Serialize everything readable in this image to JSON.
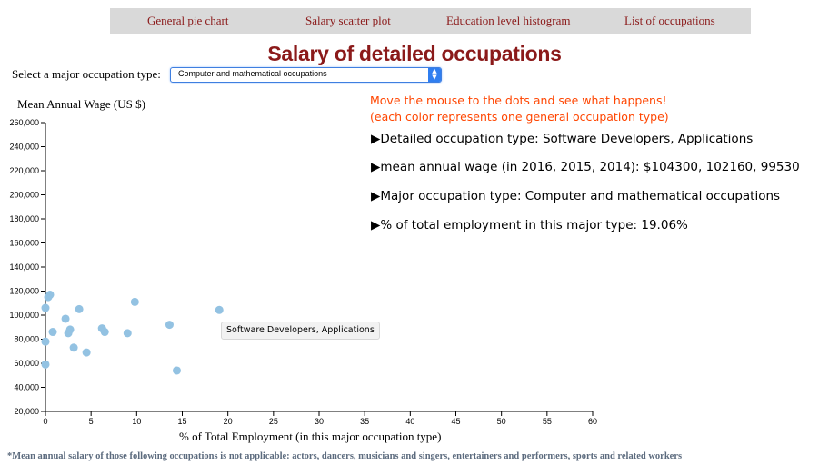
{
  "nav": {
    "items": [
      "General pie chart",
      "Salary scatter plot",
      "Education level histogram",
      "List of occupations"
    ]
  },
  "title": "Salary of detailed occupations",
  "selector": {
    "label": "Select a major occupation type:",
    "value": "Computer and mathematical occupations"
  },
  "hint": {
    "line1": "Move the mouse to the dots and see what happens!",
    "line2": "(each color represents one general occupation type)"
  },
  "details": {
    "detailed_type": "▶Detailed occupation type: Software Developers, Applications",
    "mean_wage": "▶mean annual wage (in 2016, 2015, 2014): $104300, 102160, 99530",
    "major_type": "▶Major occupation type: Computer and mathematical occupations",
    "pct_employment": "▶% of total employment in this major type: 19.06%"
  },
  "tooltip": "Software Developers, Applications",
  "footnote": "*Mean annual salary of those following occupations is not applicable: actors, dancers, musicians and singers, entertainers and performers, sports and related workers",
  "colors": {
    "dot": "#93c2e2",
    "accent": "#8b1a1a",
    "hint": "#ff4500"
  },
  "chart_data": {
    "type": "scatter",
    "ylabel": "Mean Annual Wage (US $)",
    "xlabel": "% of Total Employment (in this major occupation type)",
    "xlim": [
      0,
      60
    ],
    "ylim": [
      20000,
      260000
    ],
    "xticks": [
      0,
      5,
      10,
      15,
      20,
      25,
      30,
      35,
      40,
      45,
      50,
      55,
      60
    ],
    "yticks": [
      20000,
      40000,
      60000,
      80000,
      100000,
      120000,
      140000,
      160000,
      180000,
      200000,
      220000,
      240000,
      260000
    ],
    "points": [
      {
        "x": 0.0,
        "y": 106000
      },
      {
        "x": 0.3,
        "y": 115000
      },
      {
        "x": 0.5,
        "y": 117000
      },
      {
        "x": 0.0,
        "y": 78000
      },
      {
        "x": 0.0,
        "y": 59000
      },
      {
        "x": 0.8,
        "y": 86000
      },
      {
        "x": 2.2,
        "y": 97000
      },
      {
        "x": 2.5,
        "y": 85000
      },
      {
        "x": 2.7,
        "y": 88000
      },
      {
        "x": 3.1,
        "y": 73000
      },
      {
        "x": 3.7,
        "y": 105000
      },
      {
        "x": 4.5,
        "y": 69000
      },
      {
        "x": 6.2,
        "y": 89000
      },
      {
        "x": 6.5,
        "y": 86000
      },
      {
        "x": 9.0,
        "y": 85000
      },
      {
        "x": 9.8,
        "y": 111000
      },
      {
        "x": 13.6,
        "y": 92000
      },
      {
        "x": 14.4,
        "y": 54000
      },
      {
        "x": 19.06,
        "y": 104300
      }
    ]
  }
}
